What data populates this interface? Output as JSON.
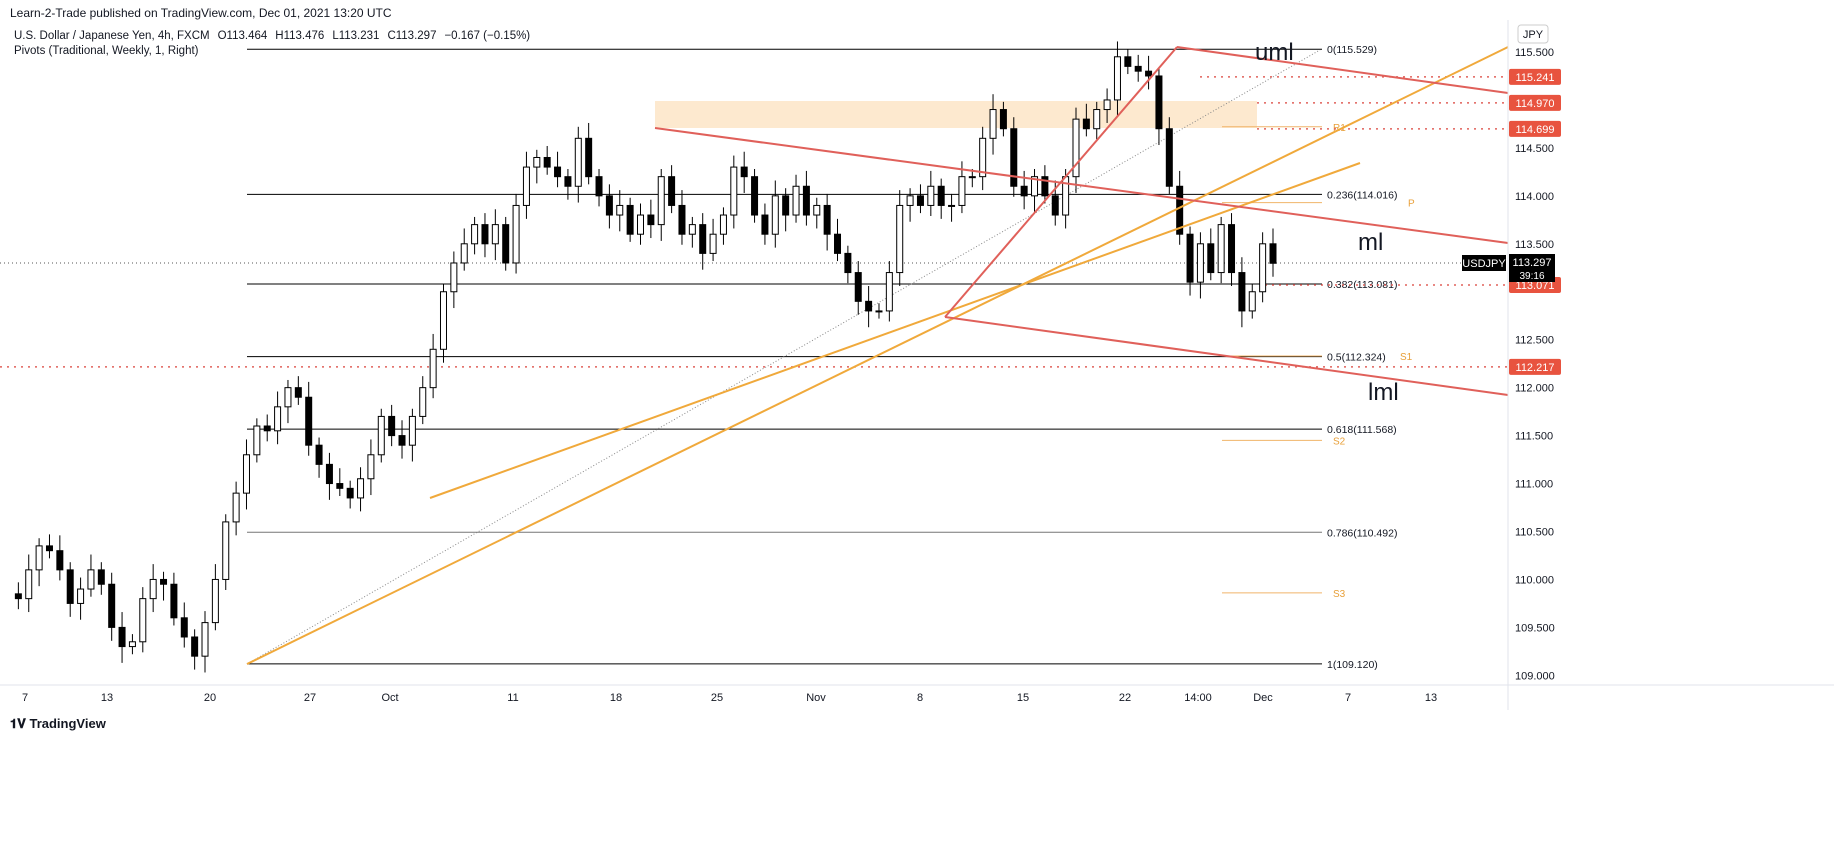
{
  "header": {
    "published": "Learn-2-Trade published on TradingView.com, Dec 01, 2021 13:20 UTC"
  },
  "legend": {
    "symbol": "U.S. Dollar / Japanese Yen, 4h, FXCM",
    "open": "O113.464",
    "high": "H113.476",
    "low": "L113.231",
    "close": "C113.297",
    "change": "−0.167 (−0.15%)",
    "indicator": "Pivots (Traditional, Weekly, 1, Right)"
  },
  "currency": "JPY",
  "ticker": "USDJPY",
  "last_price": "113.297",
  "countdown": "39:16",
  "logo": "TradingView",
  "colors": {
    "up": "#ffffff",
    "down": "#000000",
    "red_line": "#e0605a",
    "orange_line": "#f0a93b",
    "level_bg": "#e8533f"
  },
  "chart_data": {
    "type": "candlestick",
    "ylim": [
      108.9,
      115.85
    ],
    "y_ticks": [
      "115.500",
      "114.500",
      "114.000",
      "113.500",
      "112.500",
      "112.000",
      "111.500",
      "111.000",
      "110.500",
      "110.000",
      "109.500",
      "109.000"
    ],
    "x_ticks": [
      "7",
      "13",
      "20",
      "27",
      "Oct",
      "11",
      "18",
      "25",
      "Nov",
      "8",
      "15",
      "22",
      "14:00",
      "Dec",
      "7",
      "13"
    ],
    "closes": [
      109.85,
      109.8,
      110.1,
      110.35,
      110.3,
      110.1,
      109.75,
      109.9,
      110.1,
      109.95,
      109.5,
      109.3,
      109.35,
      109.8,
      110.0,
      109.95,
      109.6,
      109.4,
      109.2,
      109.55,
      110.0,
      110.6,
      110.9,
      111.3,
      111.6,
      111.55,
      111.8,
      112.0,
      111.9,
      111.4,
      111.2,
      111.0,
      110.95,
      110.85,
      111.05,
      111.3,
      111.7,
      111.5,
      111.4,
      111.7,
      112.0,
      112.4,
      113.0,
      113.3,
      113.5,
      113.7,
      113.5,
      113.7,
      113.3,
      113.9,
      114.3,
      114.4,
      114.3,
      114.2,
      114.1,
      114.6,
      114.2,
      114.0,
      113.8,
      113.9,
      113.6,
      113.8,
      113.7,
      114.2,
      113.9,
      113.6,
      113.7,
      113.4,
      113.6,
      113.8,
      114.3,
      114.2,
      113.8,
      113.6,
      114.0,
      113.8,
      114.1,
      113.8,
      113.9,
      113.6,
      113.4,
      113.2,
      112.9,
      112.8,
      112.8,
      113.2,
      113.9,
      114.0,
      113.9,
      114.1,
      113.9,
      113.9,
      114.2,
      114.2,
      114.6,
      114.9,
      114.7,
      114.1,
      114.0,
      114.2,
      114.0,
      113.8,
      114.2,
      114.8,
      114.7,
      114.9,
      115.0,
      115.45,
      115.35,
      115.3,
      115.25,
      114.7,
      114.1,
      113.6,
      113.1,
      113.5,
      113.2,
      113.7,
      113.2,
      112.8,
      113.0,
      113.5,
      113.297
    ],
    "fib_levels": [
      {
        "label": "0(115.529)",
        "price": 115.529
      },
      {
        "label": "0.236(114.016)",
        "price": 114.016
      },
      {
        "label": "0.382(113.081)",
        "price": 113.081
      },
      {
        "label": "0.5(112.324)",
        "price": 112.324
      },
      {
        "label": "0.618(111.568)",
        "price": 111.568
      },
      {
        "label": "0.786(110.492)",
        "price": 110.492
      },
      {
        "label": "1(109.120)",
        "price": 109.12
      }
    ],
    "pivots": [
      {
        "label": "R1",
        "price": 114.72
      },
      {
        "label": "P",
        "price": 113.93
      },
      {
        "label": "S1",
        "price": 112.33
      },
      {
        "label": "S2",
        "price": 111.45
      },
      {
        "label": "S3",
        "price": 109.86
      }
    ],
    "levels": [
      {
        "label": "115.241",
        "price": 115.241
      },
      {
        "label": "114.970",
        "price": 114.97
      },
      {
        "label": "114.699",
        "price": 114.699
      },
      {
        "label": "113.071",
        "price": 113.071
      },
      {
        "label": "112.217",
        "price": 112.217
      }
    ],
    "annotations": [
      "uml",
      "ml",
      "lml"
    ]
  }
}
